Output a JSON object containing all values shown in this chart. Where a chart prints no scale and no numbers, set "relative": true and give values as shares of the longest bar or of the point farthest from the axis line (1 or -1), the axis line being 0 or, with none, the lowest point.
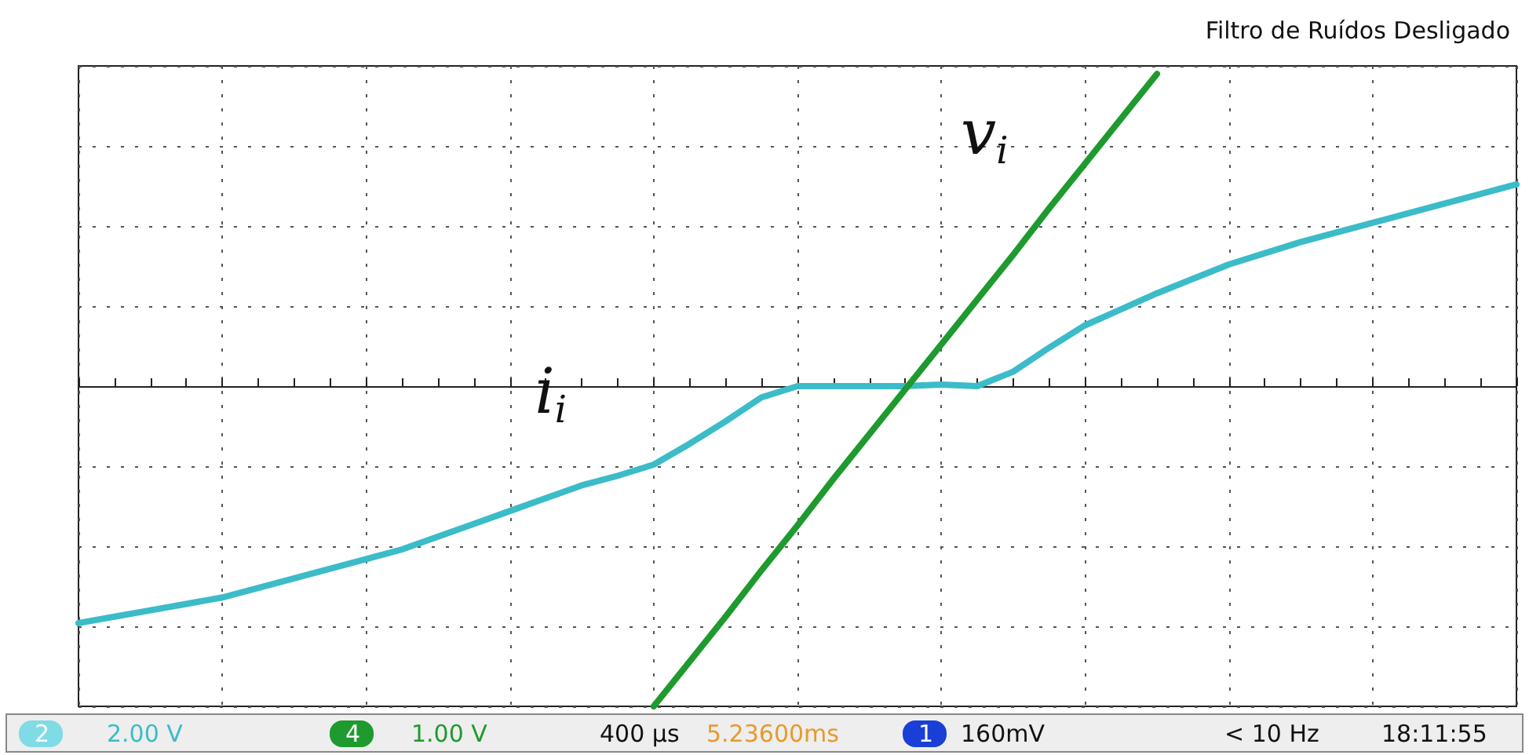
{
  "chart_data": {
    "type": "line",
    "relative": true,
    "grid": true,
    "legend": false,
    "marker": "none",
    "line_style": "solid",
    "categories": [
      null,
      null,
      null,
      null,
      null,
      null,
      null,
      null,
      null,
      null,
      null,
      null,
      null,
      null,
      null,
      null,
      null,
      null,
      null,
      null,
      null,
      null,
      null,
      null,
      null,
      null,
      null,
      null,
      null,
      null,
      null,
      null,
      null,
      null,
      null,
      null,
      null,
      null,
      null,
      null,
      null
    ],
    "series": [
      {
        "name": "i$_{i}$",
        "color": "#3bbcc8",
        "values": [
          -0.74,
          -0.72,
          -0.7,
          -0.68,
          -0.66,
          -0.63,
          -0.6,
          -0.57,
          -0.54,
          -0.51,
          -0.47,
          -0.43,
          -0.39,
          -0.35,
          -0.31,
          -0.28,
          -0.245,
          -0.18,
          -0.11,
          -0.035,
          0,
          0,
          0,
          0,
          0.005,
          0,
          0.045,
          0.12,
          0.19,
          0.24,
          0.29,
          0.335,
          0.38,
          0.415,
          0.45,
          0.48,
          0.51,
          0.54,
          0.57,
          0.6,
          0.63
        ]
      },
      {
        "name": "v$_{i}$",
        "color": "#1e9a2e",
        "values": [
          null,
          null,
          null,
          null,
          null,
          null,
          null,
          null,
          null,
          null,
          null,
          null,
          null,
          null,
          null,
          null,
          -1,
          -0.86,
          -0.72,
          -0.575,
          -0.435,
          -0.29,
          -0.15,
          -0.01,
          0.13,
          0.27,
          0.41,
          0.555,
          0.695,
          0.835,
          0.975,
          null,
          null,
          null,
          null,
          null,
          null,
          null,
          null,
          null,
          null
        ]
      }
    ],
    "annotations": [
      "Filtro de Ruídos Desligado",
      "2",
      "2.00 V",
      "4",
      "1.00 V",
      "400 µs",
      "5.23600ms",
      "1",
      "160mV",
      "< 10 Hz",
      "18:11:55"
    ]
  }
}
